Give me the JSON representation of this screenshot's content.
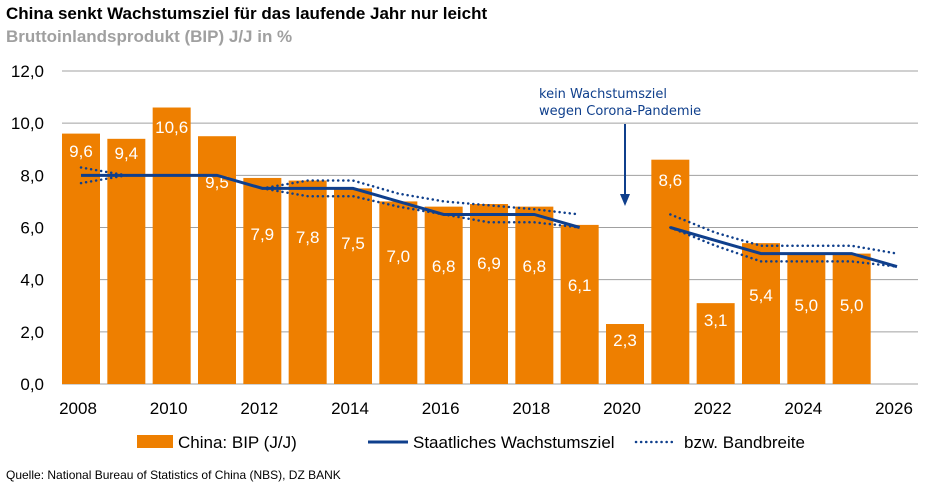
{
  "title": "China senkt Wachstumsziel für das laufende Jahr nur leicht",
  "subtitle": "Bruttoinlandsprodukt (BIP) J/J in %",
  "source": "Quelle: National Bureau of Statistics of China (NBS), DZ BANK",
  "colors": {
    "bar": "#ee7f00",
    "line": "#0f3f8c",
    "annotation": "#0f3f8c",
    "grid": "#a0a0a0"
  },
  "chart_data": {
    "type": "bar",
    "ylim": [
      0,
      12
    ],
    "yticks": [
      "0,0",
      "2,0",
      "4,0",
      "6,0",
      "8,0",
      "10,0",
      "12,0"
    ],
    "xticks": [
      "2008",
      "2010",
      "2012",
      "2014",
      "2016",
      "2018",
      "2020",
      "2022",
      "2024",
      "2026"
    ],
    "grid": true,
    "legend_position": "bottom",
    "categories": [
      2008,
      2009,
      2010,
      2011,
      2012,
      2013,
      2014,
      2015,
      2016,
      2017,
      2018,
      2019,
      2020,
      2021,
      2022,
      2023,
      2024,
      2025,
      2026
    ],
    "series": [
      {
        "name": "China: BIP (J/J)",
        "type": "bar",
        "values": [
          9.6,
          9.4,
          10.6,
          9.5,
          7.9,
          7.8,
          7.5,
          7.0,
          6.8,
          6.9,
          6.8,
          6.1,
          2.3,
          8.6,
          3.1,
          5.4,
          5.0,
          5.0,
          null
        ],
        "labels": [
          "9,6",
          "9,4",
          "10,6",
          "9,5",
          "7,9",
          "7,8",
          "7,5",
          "7,0",
          "6,8",
          "6,9",
          "6,8",
          "6,1",
          "2,3",
          "8,6",
          "3,1",
          "5,4",
          "5,0",
          "5,0",
          ""
        ]
      },
      {
        "name": "Staatliches Wachstumsziel",
        "type": "line",
        "values": [
          8.0,
          8.0,
          8.0,
          8.0,
          7.5,
          7.5,
          7.5,
          7.0,
          6.5,
          6.5,
          6.5,
          6.0,
          null,
          6.0,
          5.5,
          5.0,
          5.0,
          5.0,
          4.5
        ]
      },
      {
        "name": "bzw. Bandbreite",
        "type": "dotted-band",
        "upper": [
          8.3,
          8.0,
          null,
          null,
          7.5,
          7.8,
          7.8,
          7.3,
          7.0,
          6.85,
          6.7,
          6.5,
          null,
          6.5,
          5.8,
          5.3,
          5.3,
          5.3,
          5.0
        ],
        "lower": [
          7.7,
          8.0,
          null,
          null,
          7.5,
          7.2,
          7.2,
          6.8,
          6.5,
          6.2,
          6.2,
          6.0,
          null,
          6.0,
          5.3,
          4.7,
          4.7,
          4.7,
          4.5
        ]
      }
    ],
    "annotation": {
      "category": 2020,
      "lines": [
        "kein Wachstumsziel",
        "wegen Corona-Pandemie"
      ]
    }
  }
}
